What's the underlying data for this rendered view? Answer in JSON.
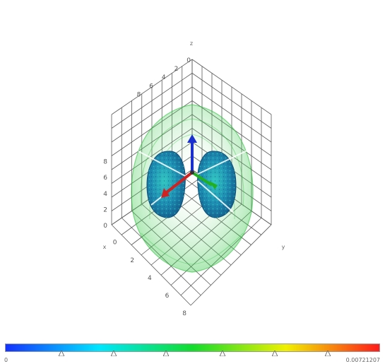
{
  "scene": {
    "axes": {
      "x": "x",
      "y": "y",
      "z": "z"
    },
    "z_ticks": [
      "0",
      "2",
      "4",
      "6",
      "8"
    ],
    "left_ticks": [
      "8",
      "6",
      "4",
      "2",
      "0"
    ],
    "bottom_ticks": [
      "0",
      "2",
      "4",
      "6",
      "8"
    ]
  },
  "colorbar": {
    "min_label": "0",
    "max_label": "0.00721207",
    "gradient": [
      "#1432ff",
      "#00e6ff",
      "#12dc2c",
      "#f0f000",
      "#ff1a1a"
    ],
    "handle_positions": [
      0.15,
      0.29,
      0.43,
      0.58,
      0.72,
      0.86
    ]
  },
  "colors": {
    "grid": "#5a5a5a",
    "shell": "#22c033",
    "blob_outer": "#1b6f9a",
    "blob_inner": "#2bc0c0",
    "axis_z": "#1a2fd0",
    "axis_x": "#d02020",
    "axis_y": "#20b020"
  }
}
